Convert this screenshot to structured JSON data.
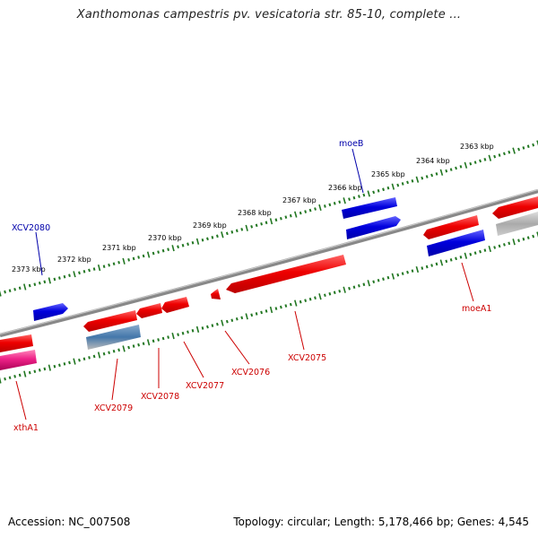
{
  "title": "Xanthomonas campestris pv. vesicatoria str. 85-10, complete ...",
  "footer": {
    "accession": "Accession: NC_007508",
    "summary": "Topology: circular; Length: 5,178,466 bp; Genes: 4,545"
  },
  "colors": {
    "forward_gene": "#ee0000",
    "reverse_gene": "#0000dd",
    "forward_label": "#cc0000",
    "reverse_label": "#0000aa",
    "backbone": "#777777",
    "ticks": "#227722",
    "xthA1_gene": "#ee2288",
    "rna_gene": "#4477aa",
    "other_gene": "#aaaaaa"
  },
  "kbp_ticks": [
    "2363 kbp",
    "2364 kbp",
    "2365 kbp",
    "2366 kbp",
    "2367 kbp",
    "2368 kbp",
    "2369 kbp",
    "2370 kbp",
    "2371 kbp",
    "2372 kbp",
    "2373 kbp"
  ],
  "gene_labels": {
    "moeB": "moeB",
    "XCV2080": "XCV2080",
    "moeA1": "moeA1",
    "XCV2075": "XCV2075",
    "XCV2076": "XCV2076",
    "XCV2077": "XCV2077",
    "XCV2078": "XCV2078",
    "XCV2079": "XCV2079",
    "xthA1": "xthA1"
  }
}
